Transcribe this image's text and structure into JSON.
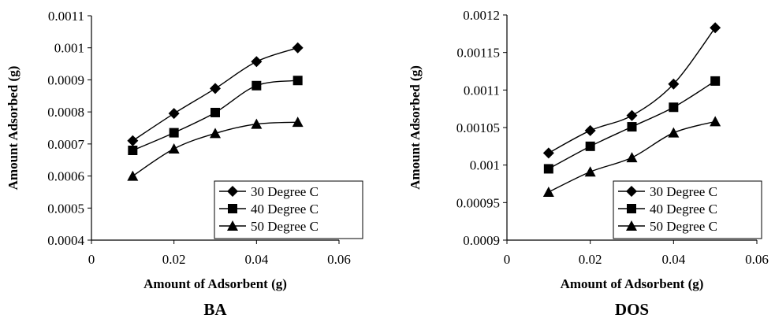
{
  "chart_data": [
    {
      "type": "line",
      "panel_label": "BA",
      "xlabel": "Amount of Adsorbent (g)",
      "ylabel": "Amount Adsorbed (g)",
      "xlim": [
        0,
        0.06
      ],
      "ylim": [
        0.0004,
        0.0011
      ],
      "x_ticks": [
        0,
        0.02,
        0.04,
        0.06
      ],
      "x_tick_labels": [
        "0",
        "0.02",
        "0.04",
        "0.06"
      ],
      "y_ticks": [
        0.0004,
        0.0005,
        0.0006,
        0.0007,
        0.0008,
        0.0009,
        0.001,
        0.0011
      ],
      "y_tick_labels": [
        "0.0004",
        "0.0005",
        "0.0006",
        "0.0007",
        "0.0008",
        "0.0009",
        "0.001",
        "0.0011"
      ],
      "grid": false,
      "legend_position": "bottom-right",
      "x": [
        0.01,
        0.02,
        0.03,
        0.04,
        0.05
      ],
      "series": [
        {
          "name": "30 Degree C",
          "marker": "diamond",
          "values": [
            0.00071,
            0.000795,
            0.000873,
            0.000957,
            0.001
          ]
        },
        {
          "name": "40 Degree C",
          "marker": "square",
          "values": [
            0.00068,
            0.000735,
            0.000798,
            0.000882,
            0.000898
          ]
        },
        {
          "name": "50 Degree C",
          "marker": "triangle",
          "values": [
            0.0006,
            0.000685,
            0.000733,
            0.000762,
            0.000768
          ]
        }
      ]
    },
    {
      "type": "line",
      "panel_label": "DOS",
      "xlabel": "Amount of Adsorbent (g)",
      "ylabel": "Amount Adsorbed (g)",
      "xlim": [
        0,
        0.06
      ],
      "ylim": [
        0.0009,
        0.0012
      ],
      "x_ticks": [
        0,
        0.02,
        0.04,
        0.06
      ],
      "x_tick_labels": [
        "0",
        "0.02",
        "0.04",
        "0.06"
      ],
      "y_ticks": [
        0.0009,
        0.00095,
        0.001,
        0.00105,
        0.0011,
        0.00115,
        0.0012
      ],
      "y_tick_labels": [
        "0.0009",
        "0.00095",
        "0.001",
        "0.00105",
        "0.0011",
        "0.00115",
        "0.0012"
      ],
      "grid": false,
      "legend_position": "bottom-right",
      "x": [
        0.01,
        0.02,
        0.03,
        0.04,
        0.05
      ],
      "series": [
        {
          "name": "30 Degree C",
          "marker": "diamond",
          "values": [
            0.001016,
            0.001046,
            0.001066,
            0.001108,
            0.001183
          ]
        },
        {
          "name": "40 Degree C",
          "marker": "square",
          "values": [
            0.000995,
            0.001025,
            0.001051,
            0.001077,
            0.001112
          ]
        },
        {
          "name": "50 Degree C",
          "marker": "triangle",
          "values": [
            0.000964,
            0.000991,
            0.00101,
            0.001043,
            0.001058
          ]
        }
      ]
    }
  ]
}
